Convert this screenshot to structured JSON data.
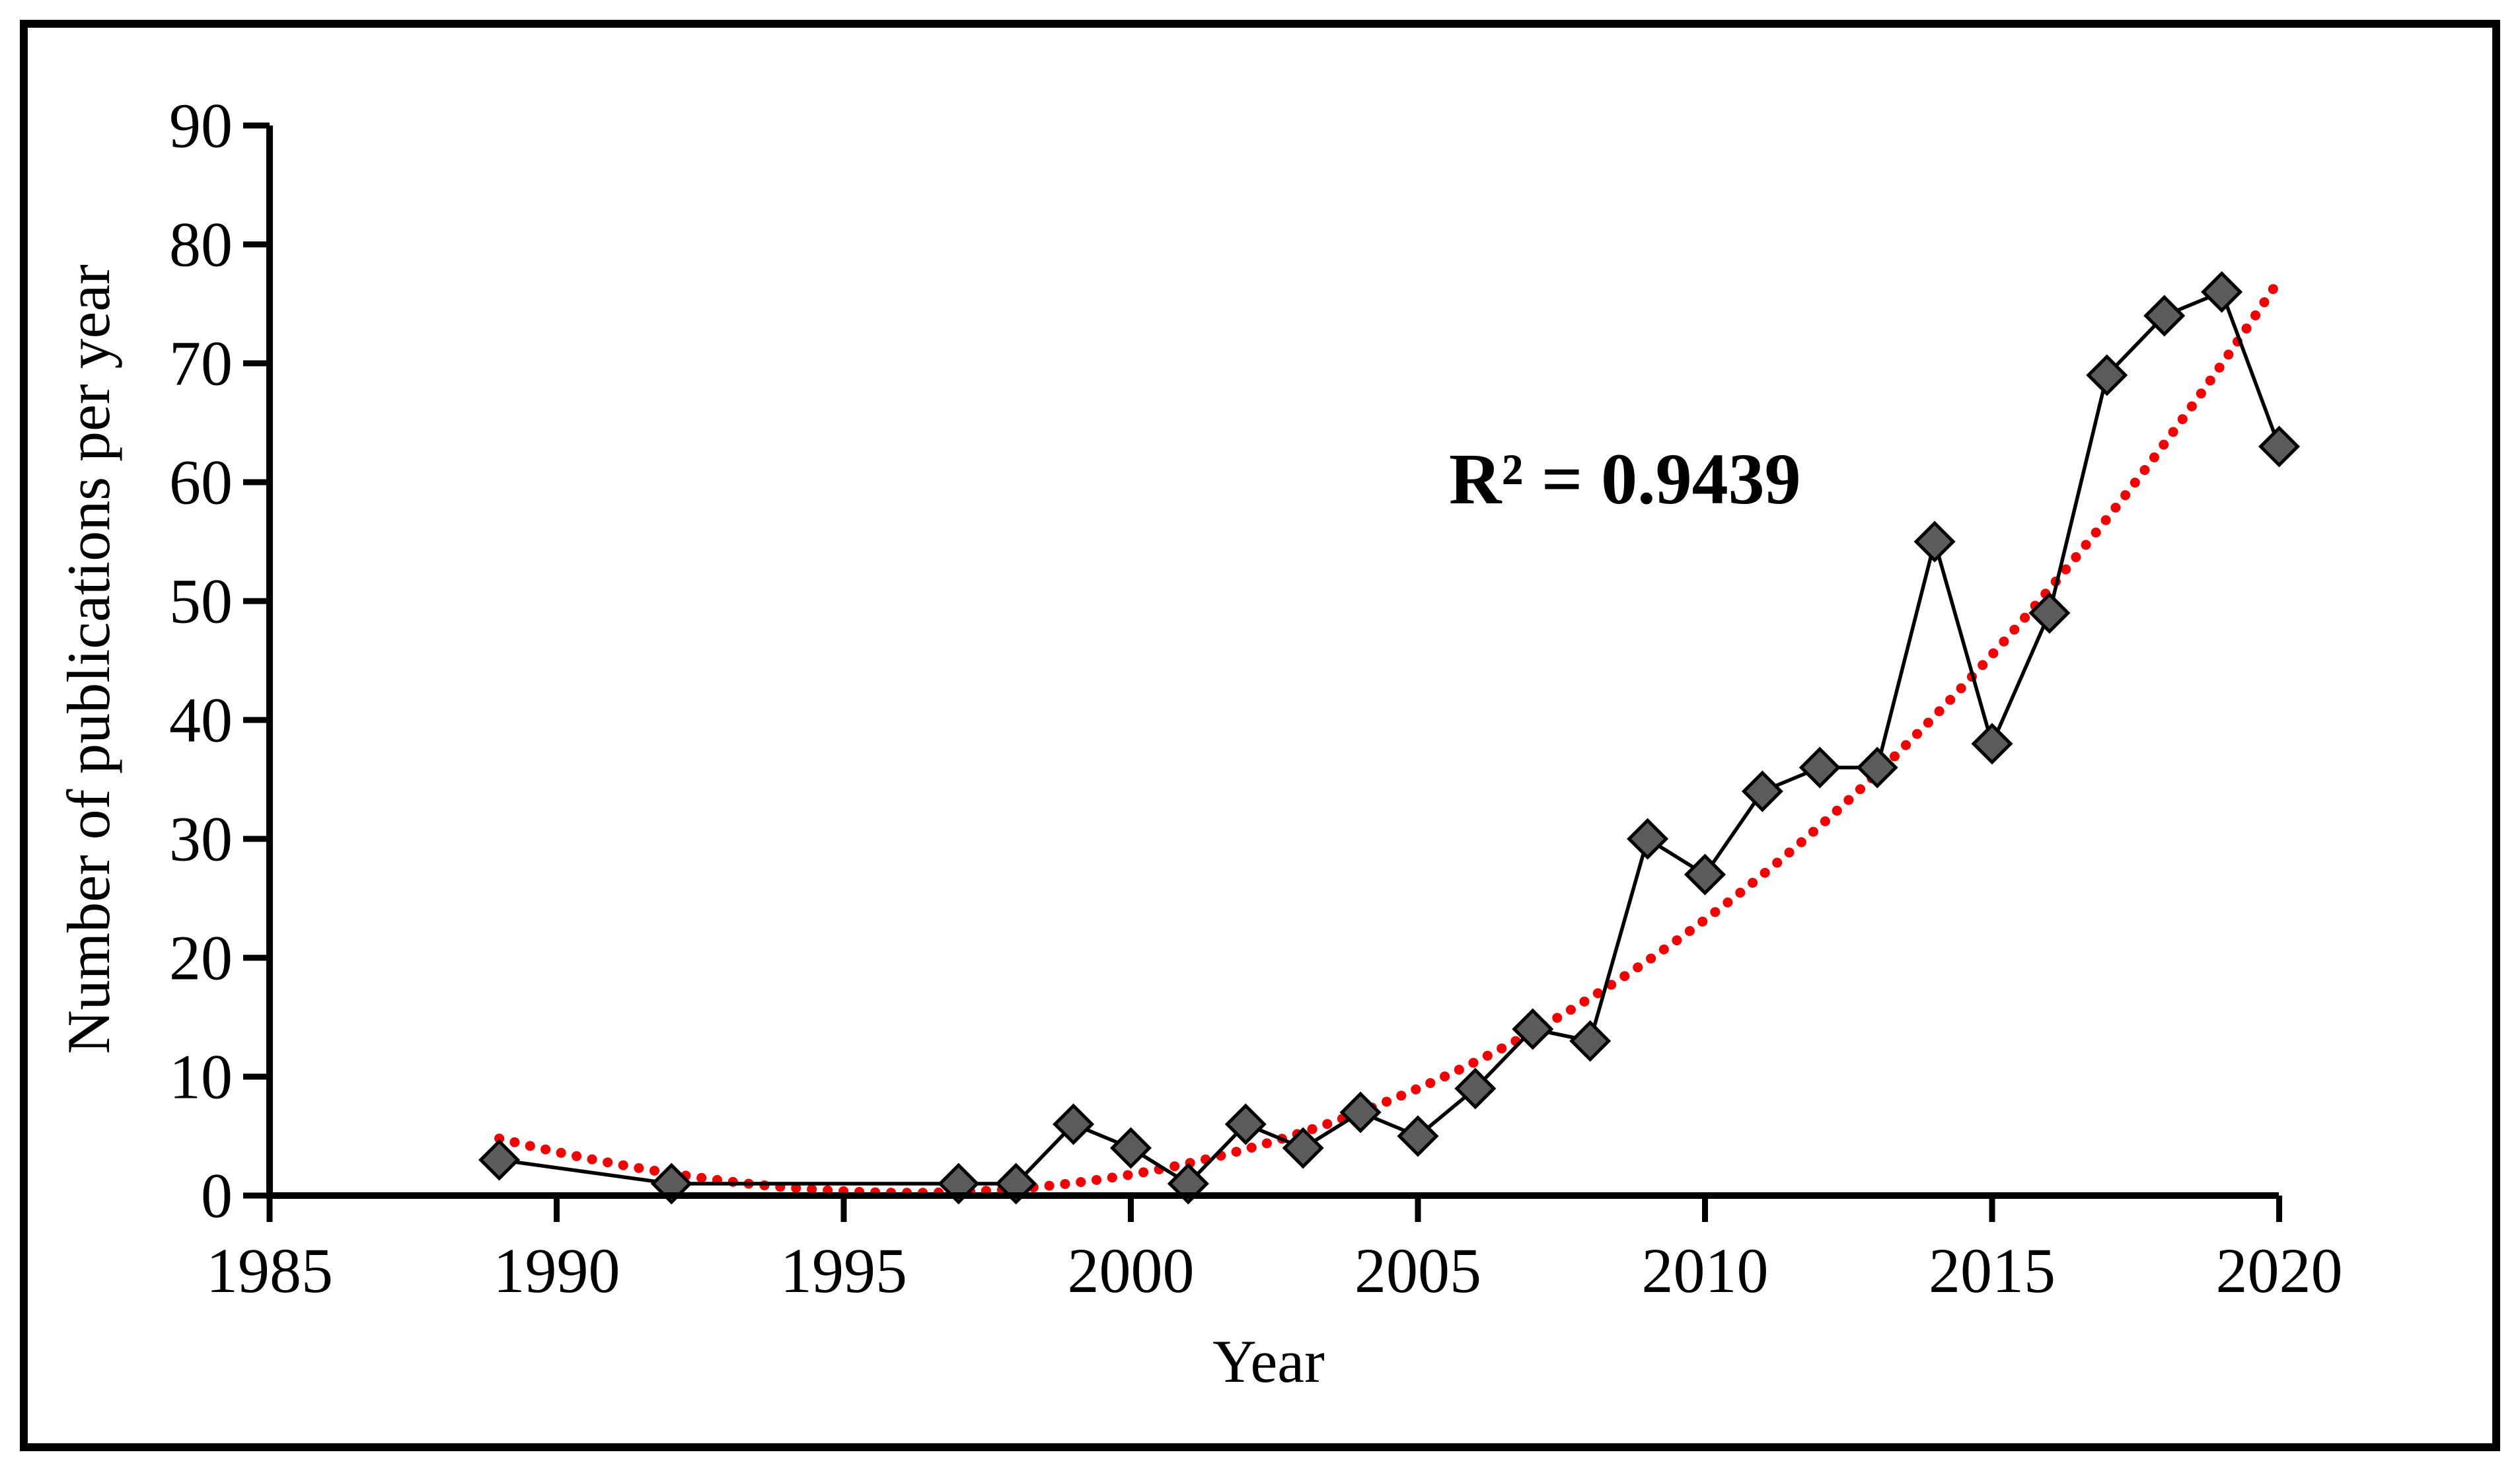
{
  "figure": {
    "background": "#ffffff",
    "border_color": "#000000"
  },
  "chart_data": {
    "type": "line",
    "title": "",
    "xlabel": "Year",
    "ylabel": "Number of publications per year",
    "annotation": "R² = 0.9439",
    "r2": 0.9439,
    "xlim": [
      1985,
      2020
    ],
    "ylim": [
      0,
      90
    ],
    "x_ticks": [
      1985,
      1990,
      1995,
      2000,
      2005,
      2010,
      2015,
      2020
    ],
    "y_ticks": [
      0,
      10,
      20,
      30,
      40,
      50,
      60,
      70,
      80,
      90
    ],
    "grid": false,
    "legend": false,
    "marker": "diamond",
    "x": [
      1989,
      1992,
      1997,
      1998,
      1999,
      2000,
      2001,
      2002,
      2003,
      2004,
      2005,
      2006,
      2007,
      2008,
      2009,
      2010,
      2011,
      2012,
      2013,
      2014,
      2015,
      2016,
      2017,
      2018,
      2019,
      2020
    ],
    "series": [
      {
        "name": "Number of publications per year",
        "values": [
          3,
          1,
          1,
          1,
          6,
          4,
          1,
          6,
          4,
          7,
          5,
          9,
          14,
          13,
          30,
          27,
          34,
          36,
          36,
          55,
          38,
          49,
          69,
          74,
          76,
          63
        ]
      }
    ],
    "trendline": {
      "kind": "polynomial-cubic",
      "t_origin_year": 1989,
      "coeffs": {
        "a": 0.001507,
        "b": 0.06696,
        "c": -1.1946,
        "d": 4.8
      },
      "year_start": 1989,
      "year_end": 2020,
      "style": "dotted",
      "color": "#f40000"
    },
    "colors": {
      "line": "#000000",
      "marker_fill": "#5b5b5b",
      "marker_stroke": "#000000",
      "trend": "#f40000",
      "text": "#000000"
    }
  }
}
